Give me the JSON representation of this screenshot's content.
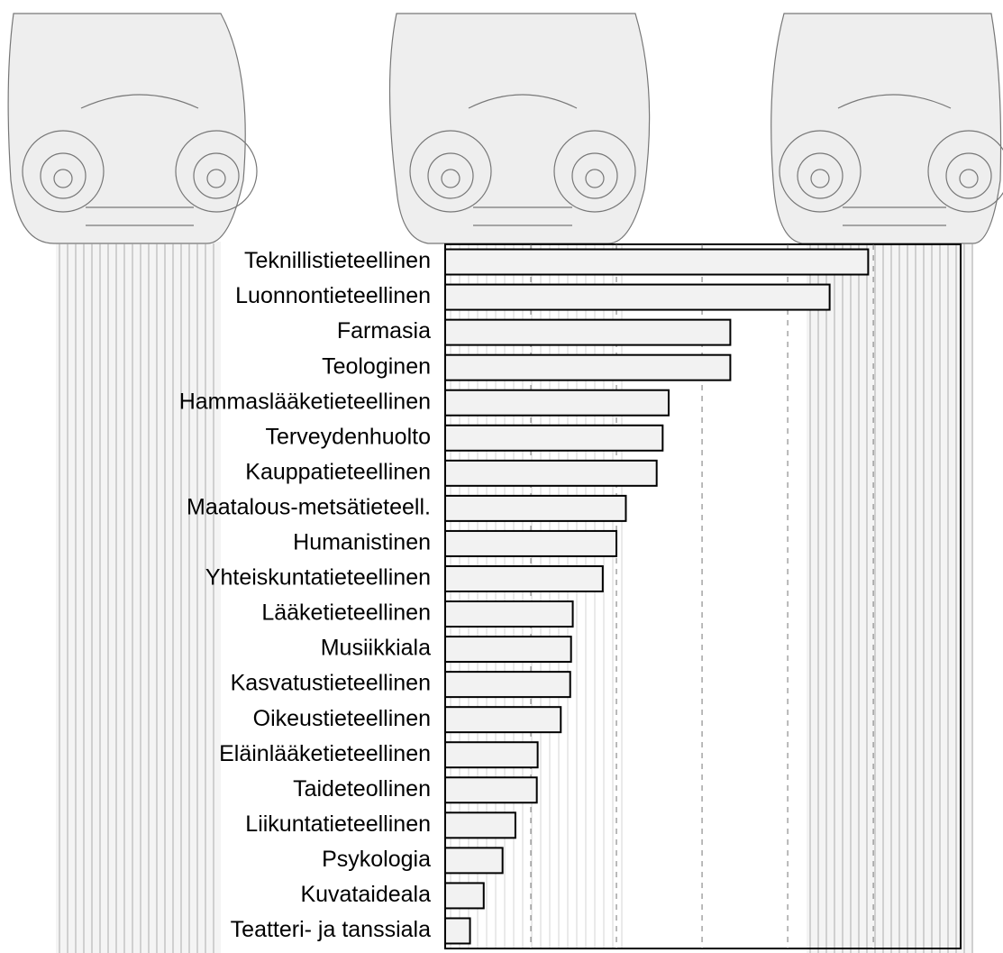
{
  "chart_data": {
    "type": "barh",
    "categories": [
      "Teknillistieteellinen",
      "Luonnontieteellinen",
      "Farmasia",
      "Teologinen",
      "Hammaslääketieteellinen",
      "Terveydenhuolto",
      "Kauppatieteellinen",
      "Maatalous-metsätieteell.",
      "Humanistinen",
      "Yhteiskuntatieteellinen",
      "Lääketieteellinen",
      "Musiikkiala",
      "Kasvatustieteellinen",
      "Oikeustieteellinen",
      "Eläinlääketieteellinen",
      "Taideteollinen",
      "Liikuntatieteellinen",
      "Psykologia",
      "Kuvataideala",
      "Teatteri- ja tanssiala"
    ],
    "values": [
      4.94,
      4.49,
      3.33,
      3.33,
      2.61,
      2.54,
      2.47,
      2.11,
      2.0,
      1.84,
      1.49,
      1.47,
      1.46,
      1.35,
      1.08,
      1.07,
      0.82,
      0.67,
      0.45,
      0.29
    ],
    "color": "#f2f2f2",
    "xlim": [
      0,
      6.02
    ],
    "grid_lines": [
      1,
      2,
      3,
      4,
      5
    ]
  }
}
